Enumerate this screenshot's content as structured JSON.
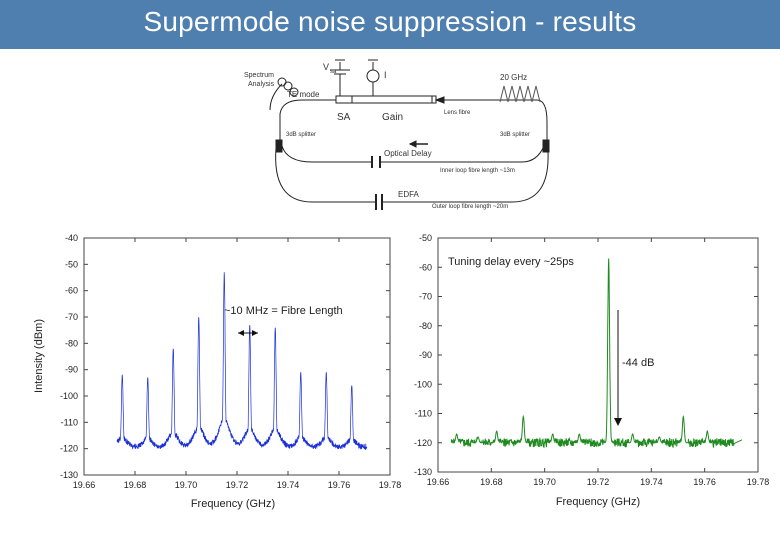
{
  "slide": {
    "title": "Supermode noise suppression - results"
  },
  "diagram": {
    "labels": {
      "spectrum": [
        "Spectrum",
        "Analysis"
      ],
      "te_mode": "TE mode",
      "sa": "SA",
      "gain": "Gain",
      "lens_fibre": "Lens fibre",
      "splitter_left": "3dB splitter",
      "splitter_right": "3dB splitter",
      "optical_delay": "Optical Delay",
      "inner_loop": "Inner loop fibre length ~13m",
      "edfa": "EDFA",
      "outer_loop": "Outer loop fibre length ~20m",
      "freq_20ghz": "20 GHz",
      "vsa": "V",
      "vsa_sub": "sa",
      "current": "I"
    }
  },
  "colors": {
    "title_bar": "#4f7fae",
    "left_trace": "#1a2fd6",
    "right_trace": "#1f8a1f"
  },
  "chart_data": [
    {
      "type": "line",
      "title": "",
      "xlabel": "Frequency (GHz)",
      "ylabel": "Intensity (dBm)",
      "xlim": [
        19.66,
        19.78
      ],
      "ylim": [
        -130,
        -40
      ],
      "x_ticks": [
        "19.66",
        "19.68",
        "19.70",
        "19.72",
        "19.74",
        "19.76",
        "19.78"
      ],
      "y_ticks": [
        "-40",
        "-50",
        "-60",
        "-70",
        "-80",
        "-90",
        "-100",
        "-110",
        "-120",
        "-130"
      ],
      "annotation": "~10 MHz = Fibre Length",
      "series": [
        {
          "noise_floor": -121,
          "peaks": [
            {
              "x": 19.675,
              "y": -92
            },
            {
              "x": 19.685,
              "y": -93
            },
            {
              "x": 19.695,
              "y": -82
            },
            {
              "x": 19.705,
              "y": -70
            },
            {
              "x": 19.715,
              "y": -53
            },
            {
              "x": 19.725,
              "y": -73
            },
            {
              "x": 19.735,
              "y": -74
            },
            {
              "x": 19.745,
              "y": -91
            },
            {
              "x": 19.755,
              "y": -91
            },
            {
              "x": 19.765,
              "y": -96
            }
          ],
          "x_range": [
            19.673,
            19.771
          ]
        }
      ]
    },
    {
      "type": "line",
      "title": "",
      "xlabel": "Frequency (GHz)",
      "ylabel": "",
      "xlim": [
        19.66,
        19.78
      ],
      "ylim": [
        -130,
        -50
      ],
      "x_ticks": [
        "19.66",
        "19.68",
        "19.70",
        "19.72",
        "19.74",
        "19.76",
        "19.78"
      ],
      "y_ticks": [
        "-50",
        "-60",
        "-70",
        "-80",
        "-90",
        "-100",
        "-110",
        "-120",
        "-130"
      ],
      "annotation": "Tuning delay every ~25ps",
      "annotation2": "-44 dB",
      "series": [
        {
          "noise_floor": -120,
          "peaks": [
            {
              "x": 19.667,
              "y": -117
            },
            {
              "x": 19.675,
              "y": -118
            },
            {
              "x": 19.682,
              "y": -116
            },
            {
              "x": 19.692,
              "y": -111
            },
            {
              "x": 19.703,
              "y": -117
            },
            {
              "x": 19.713,
              "y": -117
            },
            {
              "x": 19.724,
              "y": -57
            },
            {
              "x": 19.733,
              "y": -117
            },
            {
              "x": 19.743,
              "y": -118
            },
            {
              "x": 19.752,
              "y": -111
            },
            {
              "x": 19.761,
              "y": -116
            }
          ],
          "x_range": [
            19.665,
            19.771
          ],
          "tail_level": -119
        }
      ]
    }
  ]
}
